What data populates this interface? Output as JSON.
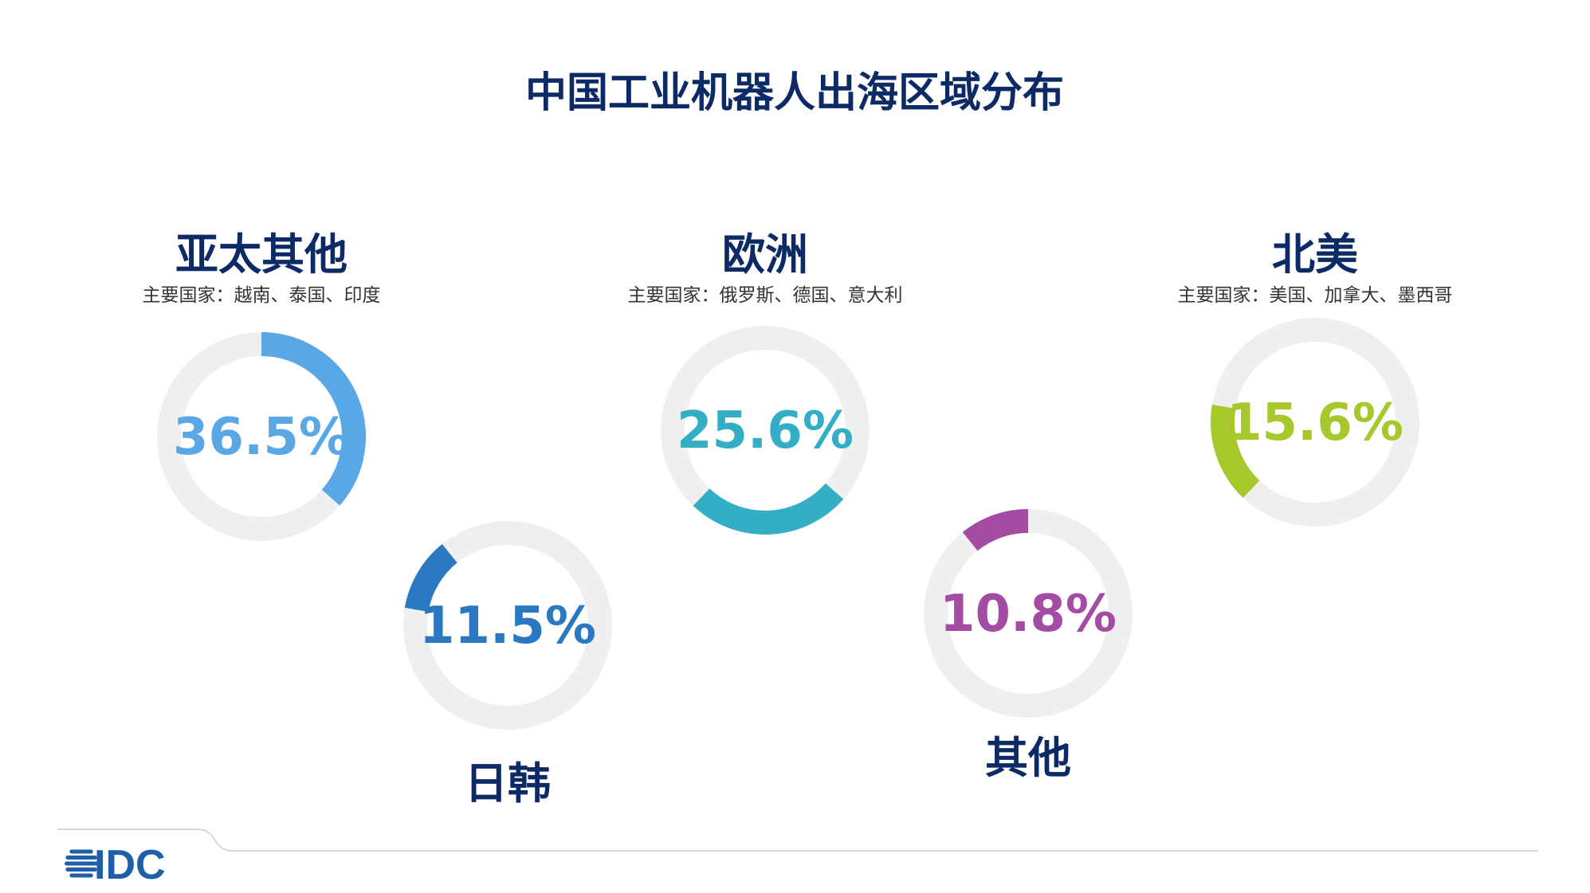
{
  "title": "中国工业机器人出海区域分布",
  "chart_data": {
    "type": "pie",
    "title": "中国工业机器人出海区域分布",
    "track_color": "#efefef",
    "segments": [
      {
        "id": "apac",
        "name": "亚太其他",
        "countries": "主要国家：越南、泰国、印度",
        "value": 36.5,
        "value_label": "36.5%",
        "color": "#5aa7e6"
      },
      {
        "id": "europe",
        "name": "欧洲",
        "countries": "主要国家：俄罗斯、德国、意大利",
        "value": 25.6,
        "value_label": "25.6%",
        "color": "#33aec4"
      },
      {
        "id": "north-america",
        "name": "北美",
        "countries": "主要国家：美国、加拿大、墨西哥",
        "value": 15.6,
        "value_label": "15.6%",
        "color": "#a6c82b"
      },
      {
        "id": "japan-korea",
        "name": "日韩",
        "countries": "",
        "value": 11.5,
        "value_label": "11.5%",
        "color": "#2a78c1"
      },
      {
        "id": "other",
        "name": "其他",
        "countries": "",
        "value": 10.8,
        "value_label": "10.8%",
        "color": "#a44ba4"
      }
    ]
  },
  "logo": {
    "text": "IDC",
    "color": "#1d5fa8"
  }
}
